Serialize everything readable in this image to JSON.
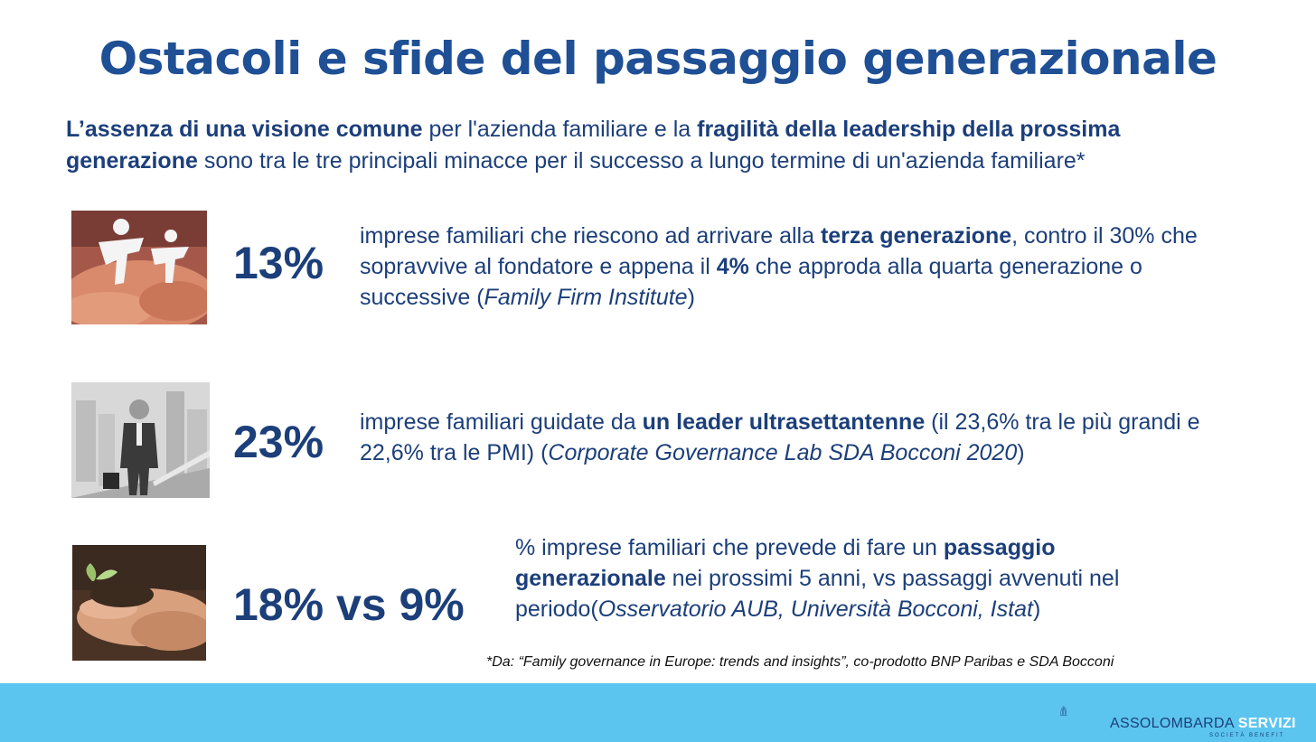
{
  "title": "Ostacoli e sfide del passaggio generazionale",
  "intro": {
    "p1_bold": "L’assenza di una visione comune",
    "p2": " per l'azienda familiare e la ",
    "p3_bold": "fragilità della leadership della prossima generazione",
    "p4": " sono tra le tre principali minacce per il successo a lungo termine di un'azienda familiare*"
  },
  "stats": [
    {
      "value": "13%",
      "t1": "imprese familiari che riescono ad arrivare alla ",
      "t2_bold": "terza generazione",
      "t3": ", contro il 30% che sopravvive al fondatore e appena il ",
      "t4_bold": "4%",
      "t5": " che approda alla quarta generazione o successive  (",
      "t6_italic": "Family Firm Institute",
      "t7": ")"
    },
    {
      "value": "23%",
      "t1": "imprese familiari guidate da ",
      "t2_bold": "un leader ultrasettantenne",
      "t3": " (il 23,6% tra le più grandi e 22,6% tra le PMI) (",
      "t4_italic": "Corporate Governance Lab SDA Bocconi 2020",
      "t5": ")"
    },
    {
      "value": "18% vs 9%",
      "t1": "% imprese familiari che prevede di fare un ",
      "t2_bold": "passaggio generazionale",
      "t3": " nei prossimi 5 anni, vs passaggi avvenuti nel periodo(",
      "t4_italic": "Osservatorio AUB, Università Bocconi, Istat",
      "t5": ")"
    }
  ],
  "footnote": "*Da: “Family governance in Europe: trends and insights”, co-prodotto BNP Paribas e SDA Bocconi",
  "logo": {
    "name_regular": "ASSOLOMBARDA ",
    "name_bold": "SERVIZI",
    "subtitle": "SOCIETÀ BENEFIT"
  },
  "colors": {
    "title": "#1f4f95",
    "text": "#1c3f7a",
    "footer_band": "#5bc5ef"
  }
}
